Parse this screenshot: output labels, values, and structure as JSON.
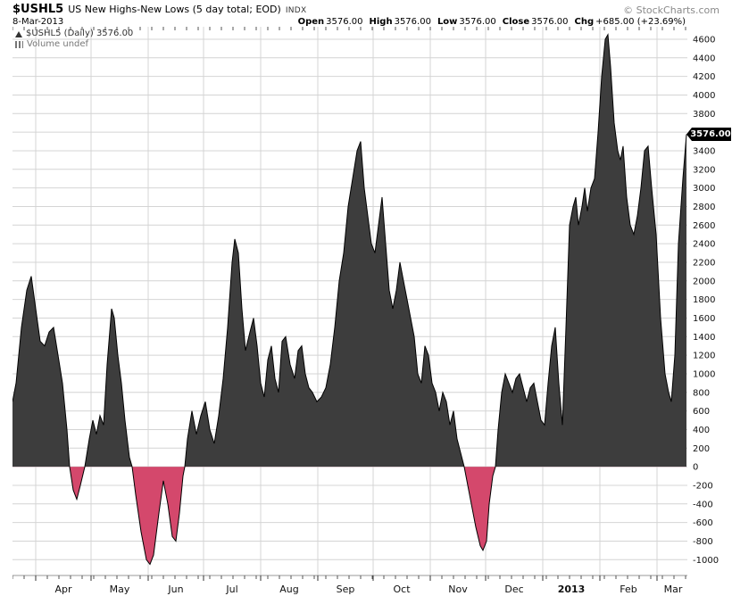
{
  "header": {
    "symbol": "$USHL5",
    "title": "US New Highs-New Lows (5 day total; EOD)",
    "exchange": "INDX",
    "copyright": "© StockCharts.com",
    "date": "8-Mar-2013",
    "quote": {
      "open_label": "Open",
      "open": "3576.00",
      "high_label": "High",
      "high": "3576.00",
      "low_label": "Low",
      "low": "3576.00",
      "close_label": "Close",
      "close": "3576.00",
      "chg_label": "Chg",
      "chg": "+685.00 (+23.69%)"
    }
  },
  "legend": {
    "series": "$USHL5 (Daily) 3576.00",
    "volume": "Volume undef"
  },
  "price_tag": "3576.00",
  "chart_data": {
    "type": "area",
    "title": "$USHL5 US New Highs-New Lows (5 day total; EOD) INDX",
    "x_unit": "sessions, late Mar 2012 - 8 Mar 2013 (t = horizontal time index 0-756)",
    "ylim": [
      -1170,
      4734
    ],
    "grid": true,
    "grid_step": 200,
    "yticks": [
      4600,
      4400,
      4200,
      4000,
      3800,
      3600,
      3400,
      3200,
      3000,
      2800,
      2600,
      2400,
      2200,
      2000,
      1800,
      1600,
      1400,
      1200,
      1000,
      800,
      600,
      400,
      200,
      0,
      -200,
      -400,
      -600,
      -800,
      -1000
    ],
    "last_value": 3576.0,
    "colors": {
      "positive_fill": "#3d3d3d",
      "negative_fill": "#d4486c",
      "line": "#000000",
      "grid": "#d4d4d4",
      "axis": "#999999",
      "tick": "#555555",
      "label": "#111111"
    },
    "months": [
      {
        "label": "Apr",
        "t0": 26,
        "tc": 57,
        "bold": false
      },
      {
        "label": "May",
        "t0": 88,
        "tc": 120,
        "bold": false
      },
      {
        "label": "Jun",
        "t0": 152,
        "tc": 183,
        "bold": false
      },
      {
        "label": "Jul",
        "t0": 214,
        "tc": 246,
        "bold": false
      },
      {
        "label": "Aug",
        "t0": 278,
        "tc": 310,
        "bold": false
      },
      {
        "label": "Sep",
        "t0": 342,
        "tc": 373,
        "bold": false
      },
      {
        "label": "Oct",
        "t0": 404,
        "tc": 436,
        "bold": false
      },
      {
        "label": "Nov",
        "t0": 468,
        "tc": 499,
        "bold": false
      },
      {
        "label": "Dec",
        "t0": 530,
        "tc": 562,
        "bold": false
      },
      {
        "label": "2013",
        "t0": 594,
        "tc": 626,
        "bold": true
      },
      {
        "label": "Feb",
        "t0": 658,
        "tc": 690,
        "bold": false
      },
      {
        "label": "Mar",
        "t0": 722,
        "tc": 740,
        "bold": false
      }
    ],
    "points": [
      [
        0,
        700
      ],
      [
        4,
        900
      ],
      [
        10,
        1500
      ],
      [
        16,
        1900
      ],
      [
        21,
        2050
      ],
      [
        26,
        1700
      ],
      [
        31,
        1350
      ],
      [
        36,
        1300
      ],
      [
        41,
        1450
      ],
      [
        46,
        1500
      ],
      [
        51,
        1200
      ],
      [
        56,
        900
      ],
      [
        61,
        400
      ],
      [
        64,
        0
      ],
      [
        68,
        -250
      ],
      [
        72,
        -350
      ],
      [
        76,
        -200
      ],
      [
        81,
        0
      ],
      [
        86,
        300
      ],
      [
        90,
        500
      ],
      [
        94,
        350
      ],
      [
        98,
        550
      ],
      [
        102,
        450
      ],
      [
        106,
        1100
      ],
      [
        111,
        1700
      ],
      [
        114,
        1600
      ],
      [
        118,
        1200
      ],
      [
        122,
        900
      ],
      [
        126,
        500
      ],
      [
        131,
        100
      ],
      [
        134,
        0
      ],
      [
        138,
        -300
      ],
      [
        144,
        -700
      ],
      [
        150,
        -1000
      ],
      [
        154,
        -1050
      ],
      [
        158,
        -950
      ],
      [
        164,
        -500
      ],
      [
        169,
        -150
      ],
      [
        174,
        -400
      ],
      [
        179,
        -750
      ],
      [
        183,
        -800
      ],
      [
        187,
        -500
      ],
      [
        191,
        -100
      ],
      [
        193,
        0
      ],
      [
        196,
        300
      ],
      [
        201,
        600
      ],
      [
        206,
        350
      ],
      [
        211,
        550
      ],
      [
        216,
        700
      ],
      [
        221,
        400
      ],
      [
        226,
        250
      ],
      [
        231,
        550
      ],
      [
        236,
        950
      ],
      [
        241,
        1500
      ],
      [
        246,
        2200
      ],
      [
        249,
        2450
      ],
      [
        253,
        2300
      ],
      [
        257,
        1700
      ],
      [
        261,
        1250
      ],
      [
        266,
        1450
      ],
      [
        270,
        1600
      ],
      [
        274,
        1300
      ],
      [
        278,
        900
      ],
      [
        282,
        750
      ],
      [
        286,
        1150
      ],
      [
        290,
        1300
      ],
      [
        294,
        950
      ],
      [
        298,
        800
      ],
      [
        302,
        1350
      ],
      [
        306,
        1400
      ],
      [
        311,
        1100
      ],
      [
        316,
        950
      ],
      [
        320,
        1250
      ],
      [
        324,
        1300
      ],
      [
        328,
        1000
      ],
      [
        332,
        850
      ],
      [
        336,
        800
      ],
      [
        341,
        700
      ],
      [
        346,
        750
      ],
      [
        351,
        850
      ],
      [
        356,
        1100
      ],
      [
        361,
        1500
      ],
      [
        366,
        2000
      ],
      [
        371,
        2300
      ],
      [
        376,
        2800
      ],
      [
        381,
        3100
      ],
      [
        386,
        3400
      ],
      [
        390,
        3500
      ],
      [
        394,
        3000
      ],
      [
        398,
        2700
      ],
      [
        402,
        2400
      ],
      [
        406,
        2300
      ],
      [
        410,
        2600
      ],
      [
        414,
        2900
      ],
      [
        418,
        2400
      ],
      [
        422,
        1900
      ],
      [
        426,
        1700
      ],
      [
        430,
        1900
      ],
      [
        434,
        2200
      ],
      [
        438,
        2000
      ],
      [
        442,
        1800
      ],
      [
        446,
        1600
      ],
      [
        450,
        1400
      ],
      [
        454,
        1000
      ],
      [
        458,
        900
      ],
      [
        462,
        1300
      ],
      [
        466,
        1200
      ],
      [
        470,
        900
      ],
      [
        474,
        800
      ],
      [
        478,
        600
      ],
      [
        482,
        800
      ],
      [
        486,
        700
      ],
      [
        490,
        450
      ],
      [
        494,
        600
      ],
      [
        498,
        300
      ],
      [
        502,
        150
      ],
      [
        506,
        0
      ],
      [
        510,
        -200
      ],
      [
        514,
        -400
      ],
      [
        519,
        -650
      ],
      [
        524,
        -850
      ],
      [
        527,
        -900
      ],
      [
        531,
        -800
      ],
      [
        534,
        -400
      ],
      [
        538,
        -100
      ],
      [
        541,
        0
      ],
      [
        544,
        400
      ],
      [
        548,
        800
      ],
      [
        552,
        1000
      ],
      [
        556,
        900
      ],
      [
        560,
        800
      ],
      [
        564,
        950
      ],
      [
        568,
        1000
      ],
      [
        572,
        850
      ],
      [
        576,
        700
      ],
      [
        580,
        850
      ],
      [
        584,
        900
      ],
      [
        588,
        700
      ],
      [
        592,
        500
      ],
      [
        596,
        450
      ],
      [
        600,
        900
      ],
      [
        604,
        1300
      ],
      [
        608,
        1500
      ],
      [
        612,
        900
      ],
      [
        616,
        450
      ],
      [
        620,
        1500
      ],
      [
        624,
        2600
      ],
      [
        628,
        2800
      ],
      [
        631,
        2900
      ],
      [
        634,
        2600
      ],
      [
        638,
        2800
      ],
      [
        641,
        3000
      ],
      [
        644,
        2750
      ],
      [
        648,
        3000
      ],
      [
        652,
        3100
      ],
      [
        656,
        3600
      ],
      [
        660,
        4200
      ],
      [
        664,
        4600
      ],
      [
        667,
        4650
      ],
      [
        670,
        4300
      ],
      [
        674,
        3700
      ],
      [
        678,
        3400
      ],
      [
        681,
        3300
      ],
      [
        684,
        3450
      ],
      [
        688,
        2900
      ],
      [
        692,
        2600
      ],
      [
        696,
        2500
      ],
      [
        700,
        2700
      ],
      [
        704,
        3000
      ],
      [
        708,
        3400
      ],
      [
        712,
        3450
      ],
      [
        716,
        3000
      ],
      [
        721,
        2500
      ],
      [
        726,
        1600
      ],
      [
        731,
        1000
      ],
      [
        735,
        800
      ],
      [
        738,
        700
      ],
      [
        742,
        1200
      ],
      [
        746,
        2400
      ],
      [
        751,
        3100
      ],
      [
        755,
        3576
      ]
    ]
  }
}
